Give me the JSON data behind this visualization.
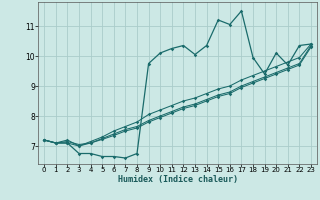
{
  "title": "",
  "xlabel": "Humidex (Indice chaleur)",
  "bg_color": "#cce8e5",
  "grid_color": "#aaccca",
  "line_color": "#1a6b6b",
  "xlim": [
    -0.5,
    23.5
  ],
  "ylim": [
    6.4,
    11.8
  ],
  "yticks": [
    7,
    8,
    9,
    10,
    11
  ],
  "xticks": [
    0,
    1,
    2,
    3,
    4,
    5,
    6,
    7,
    8,
    9,
    10,
    11,
    12,
    13,
    14,
    15,
    16,
    17,
    18,
    19,
    20,
    21,
    22,
    23
  ],
  "series": [
    [
      7.2,
      7.1,
      7.1,
      6.75,
      6.75,
      6.65,
      6.65,
      6.6,
      6.75,
      9.75,
      10.1,
      10.25,
      10.35,
      10.05,
      10.35,
      11.2,
      11.05,
      11.5,
      9.95,
      9.4,
      10.1,
      9.7,
      10.35,
      10.4
    ],
    [
      7.2,
      7.1,
      7.2,
      7.0,
      7.15,
      7.3,
      7.5,
      7.65,
      7.8,
      8.05,
      8.2,
      8.35,
      8.5,
      8.6,
      8.75,
      8.9,
      9.0,
      9.2,
      9.35,
      9.5,
      9.65,
      9.8,
      9.95,
      10.4
    ],
    [
      7.2,
      7.1,
      7.15,
      7.05,
      7.1,
      7.25,
      7.4,
      7.55,
      7.65,
      7.85,
      8.0,
      8.15,
      8.3,
      8.4,
      8.55,
      8.7,
      8.8,
      9.0,
      9.15,
      9.3,
      9.45,
      9.6,
      9.75,
      10.35
    ],
    [
      7.2,
      7.1,
      7.1,
      7.0,
      7.1,
      7.22,
      7.35,
      7.5,
      7.6,
      7.8,
      7.95,
      8.1,
      8.25,
      8.35,
      8.5,
      8.65,
      8.75,
      8.95,
      9.1,
      9.25,
      9.4,
      9.55,
      9.7,
      10.3
    ]
  ]
}
